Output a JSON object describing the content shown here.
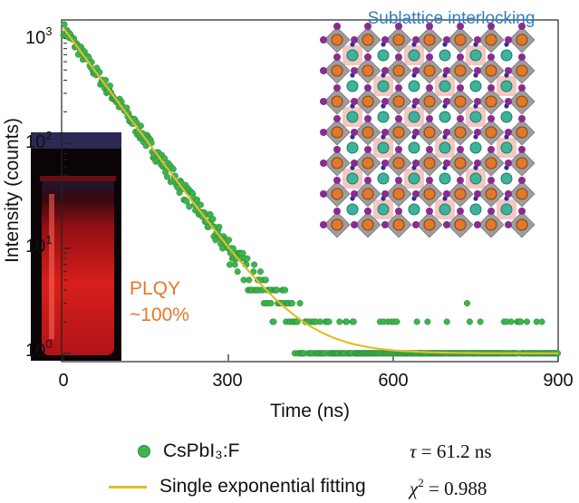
{
  "chart_data": {
    "type": "scatter",
    "xlabel": "Time (ns)",
    "ylabel": "Intensity (counts)",
    "xlim": [
      0,
      900
    ],
    "ylim": [
      0.8,
      1600
    ],
    "yscale": "log",
    "xticks": [
      0,
      300,
      600,
      900
    ],
    "yticks": [
      {
        "value": 1,
        "base": "10",
        "exp": "0"
      },
      {
        "value": 10,
        "base": "10",
        "exp": "1"
      },
      {
        "value": 100,
        "base": "10",
        "exp": "2"
      },
      {
        "value": 1000,
        "base": "10",
        "exp": "3"
      }
    ],
    "series": [
      {
        "name": "CsPbI₃:F",
        "kind": "scatter",
        "color": "#3fb34f",
        "decay": {
          "amplitude": 1250,
          "tau_ns": 61.2,
          "background": 1
        }
      },
      {
        "name": "Single exponential fitting",
        "kind": "line",
        "color": "#e2bd2a",
        "fit": {
          "amplitude": 1250,
          "tau_ns": 61.2,
          "background": 1
        }
      }
    ],
    "annotations": {
      "inset_title": "Sublattice interlocking",
      "plqy_line1": "PLQY",
      "plqy_line2": "~100%"
    }
  },
  "legend": {
    "series1": "CsPbI₃:F",
    "series2": "Single exponential fitting",
    "tau_symbol": "τ",
    "tau_value": " = 61.2 ns",
    "chi_symbol": "χ",
    "chi_exp": "2",
    "chi_value": " = 0.988"
  },
  "colors": {
    "data": "#3fb34f",
    "fit": "#e2bd2a",
    "inset_title": "#2f7fc4",
    "plqy": "#e8762b",
    "vial": "#e01b1b"
  }
}
